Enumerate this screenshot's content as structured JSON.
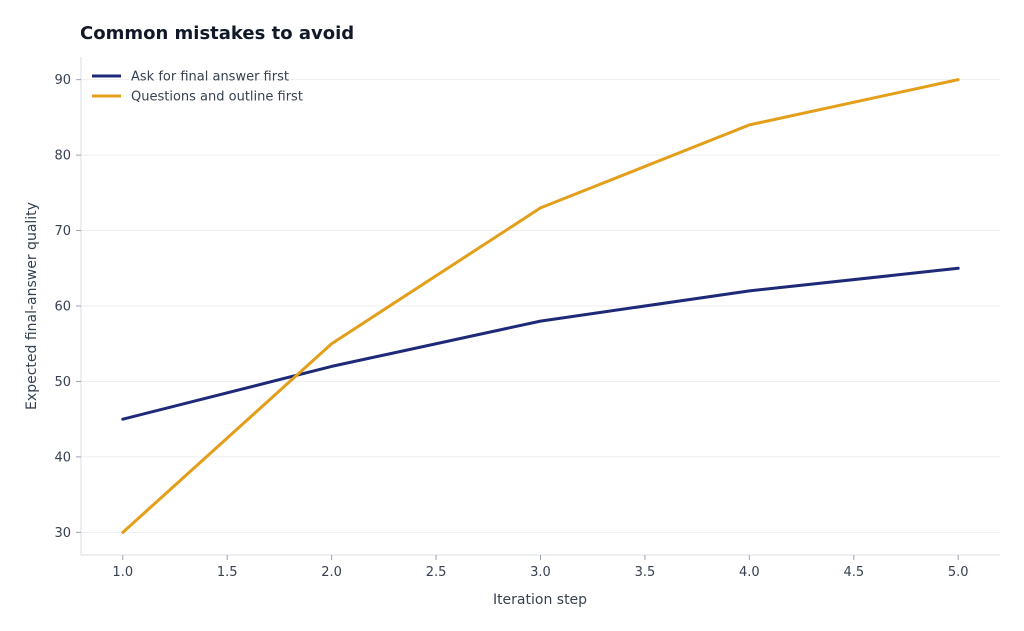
{
  "chart_data": {
    "type": "line",
    "title": "Common mistakes to avoid",
    "xlabel": "Iteration step",
    "ylabel": "Expected final-answer quality",
    "xlim": [
      0.8,
      5.2
    ],
    "ylim": [
      27,
      93
    ],
    "xticks": [
      1.0,
      1.5,
      2.0,
      2.5,
      3.0,
      3.5,
      4.0,
      4.5,
      5.0
    ],
    "xtick_labels": [
      "1.0",
      "1.5",
      "2.0",
      "2.5",
      "3.0",
      "3.5",
      "4.0",
      "4.5",
      "5.0"
    ],
    "yticks": [
      30,
      40,
      50,
      60,
      70,
      80,
      90
    ],
    "ytick_labels": [
      "30",
      "40",
      "50",
      "60",
      "70",
      "80",
      "90"
    ],
    "grid": true,
    "legend_position": "top-left",
    "series": [
      {
        "name": "Ask for final answer first",
        "color": "#1e2a78",
        "x": [
          1,
          2,
          3,
          4,
          5
        ],
        "y": [
          45,
          52,
          58,
          62,
          65
        ]
      },
      {
        "name": "Questions and outline first",
        "color": "#e39f1a",
        "x": [
          1,
          2,
          3,
          4,
          5
        ],
        "y": [
          30,
          55,
          73,
          84,
          90
        ]
      }
    ]
  }
}
